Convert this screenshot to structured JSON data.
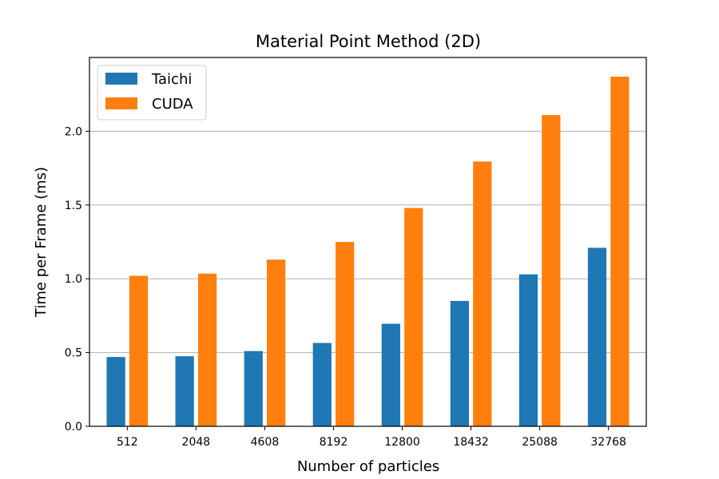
{
  "chart_data": {
    "type": "bar",
    "title": "Material Point Method (2D)",
    "xlabel": "Number of particles",
    "ylabel": "Time per Frame (ms)",
    "categories": [
      "512",
      "2048",
      "4608",
      "8192",
      "12800",
      "18432",
      "25088",
      "32768"
    ],
    "series": [
      {
        "name": "Taichi",
        "color": "#1f77b4",
        "values": [
          0.47,
          0.475,
          0.51,
          0.565,
          0.695,
          0.85,
          1.03,
          1.21
        ]
      },
      {
        "name": "CUDA",
        "color": "#ff7f0e",
        "values": [
          1.02,
          1.035,
          1.13,
          1.25,
          1.48,
          1.795,
          2.11,
          2.37
        ]
      }
    ],
    "ylim": [
      0,
      2.5
    ],
    "yticks": [
      "0.0",
      "0.5",
      "1.0",
      "1.5",
      "2.0"
    ],
    "grid": "y",
    "legend_position": "top-left"
  }
}
